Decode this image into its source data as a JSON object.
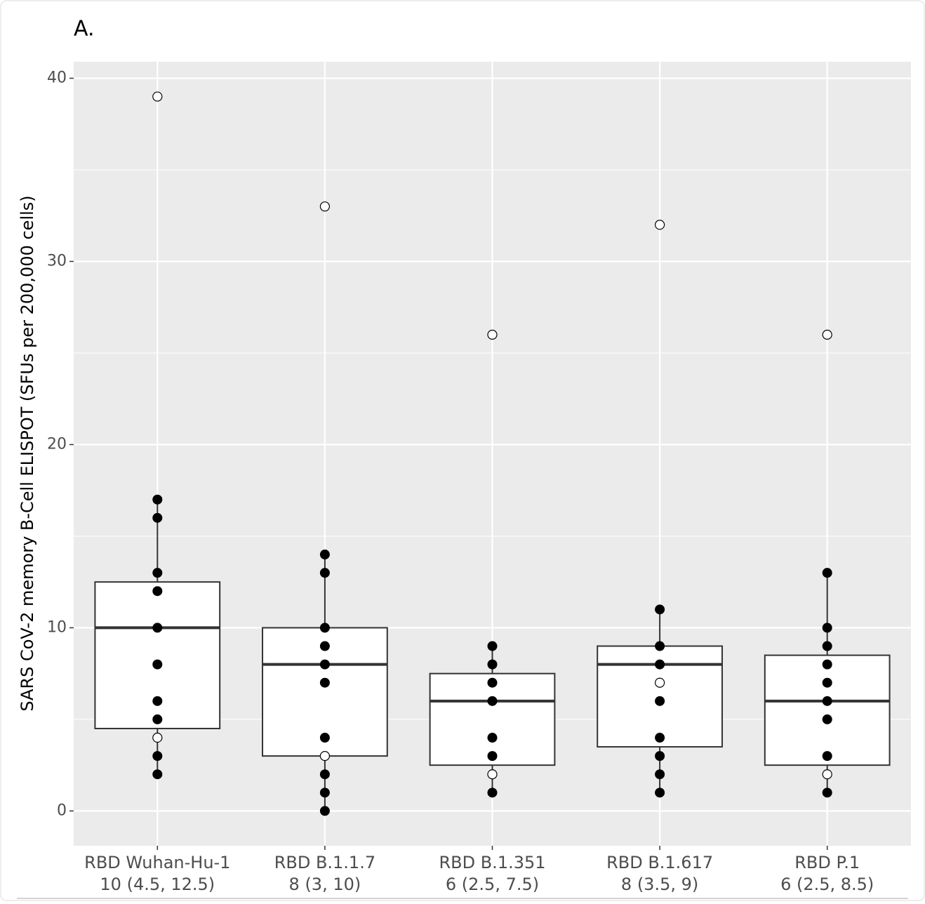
{
  "chart_data": {
    "type": "box",
    "panel_label": "A.",
    "y_label": "SARS CoV-2 memory B-Cell ELISPOT (SFUs per 200,000 cells)",
    "categories": [
      "RBD Wuhan-Hu-1",
      "RBD B.1.1.7",
      "RBD B.1.351",
      "RBD B.1.617",
      "RBD P.1"
    ],
    "summaries": [
      "10 (4.5, 12.5)",
      "8 (3, 10)",
      "6 (2.5, 7.5)",
      "8 (3.5, 9)",
      "6 (2.5, 8.5)"
    ],
    "boxes": [
      {
        "whisker_low": 2,
        "q1": 4.5,
        "median": 10,
        "q3": 12.5,
        "whisker_high": 17
      },
      {
        "whisker_low": 0,
        "q1": 3,
        "median": 8,
        "q3": 10,
        "whisker_high": 14
      },
      {
        "whisker_low": 1,
        "q1": 2.5,
        "median": 6,
        "q3": 7.5,
        "whisker_high": 9
      },
      {
        "whisker_low": 1,
        "q1": 3.5,
        "median": 8,
        "q3": 9,
        "whisker_high": 11
      },
      {
        "whisker_low": 1,
        "q1": 2.5,
        "median": 6,
        "q3": 8.5,
        "whisker_high": 13
      }
    ],
    "points": [
      {
        "filled": [
          17,
          16,
          13,
          12,
          10,
          8,
          6,
          5,
          3,
          2
        ],
        "open": [
          39,
          4
        ]
      },
      {
        "filled": [
          14,
          13,
          10,
          9,
          8,
          7,
          4,
          2,
          1,
          0
        ],
        "open": [
          33,
          3
        ]
      },
      {
        "filled": [
          9,
          8,
          7,
          6,
          4,
          3,
          1
        ],
        "open": [
          26,
          2
        ]
      },
      {
        "filled": [
          11,
          9,
          8,
          6,
          4,
          3,
          2,
          1
        ],
        "open": [
          32,
          7
        ]
      },
      {
        "filled": [
          13,
          10,
          9,
          8,
          7,
          6,
          5,
          3,
          1
        ],
        "open": [
          26,
          2
        ]
      }
    ],
    "ylim": [
      -1.9,
      40.9
    ],
    "yticks": [
      0,
      10,
      20,
      30,
      40
    ],
    "minor_yticks": [
      5,
      15,
      25,
      35
    ],
    "grid": true,
    "panel_color": "#ebebeb",
    "box_color": "#ffffff",
    "point_color": "#000000"
  }
}
